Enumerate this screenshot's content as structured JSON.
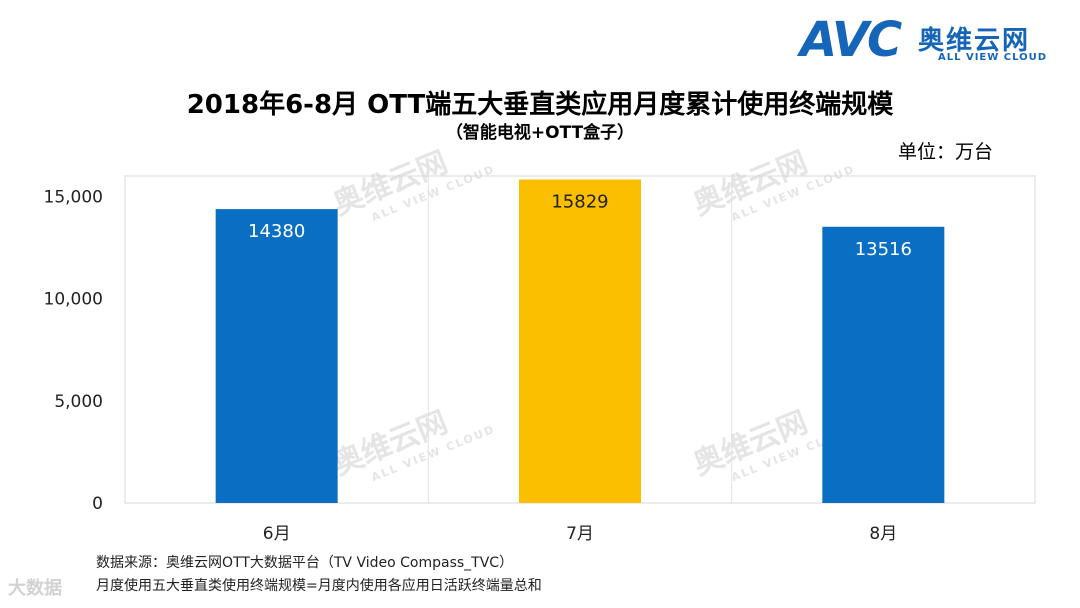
{
  "logo": {
    "mark": "AVC",
    "name_cn": "奥维云网",
    "name_en": "ALL VIEW CLOUD"
  },
  "corner_mark": "大数据",
  "unit_label": "单位：万台",
  "footnotes": [
    "数据来源：奥维云网OTT大数据平台（TV Video Compass_TVC）",
    "月度使用五大垂直类使用终端规模=月度内使用各应用日活跃终端量总和"
  ],
  "chart_data": {
    "type": "bar",
    "title": "2018年6-8月    OTT端五大垂直类应用月度累计使用终端规模",
    "subtitle": "（智能电视+OTT盒子）",
    "categories": [
      "6月",
      "7月",
      "8月"
    ],
    "values": [
      14380,
      15829,
      13516
    ],
    "colors": [
      "#0a6fc2",
      "#fbbf00",
      "#0a6fc2"
    ],
    "ylim": [
      0,
      16000
    ],
    "yticks": [
      0,
      5000,
      10000,
      15000
    ],
    "ytick_labels": [
      "0",
      "5,000",
      "10,000",
      "15,000"
    ],
    "grid": "vertical",
    "xlabel": "",
    "ylabel": ""
  }
}
